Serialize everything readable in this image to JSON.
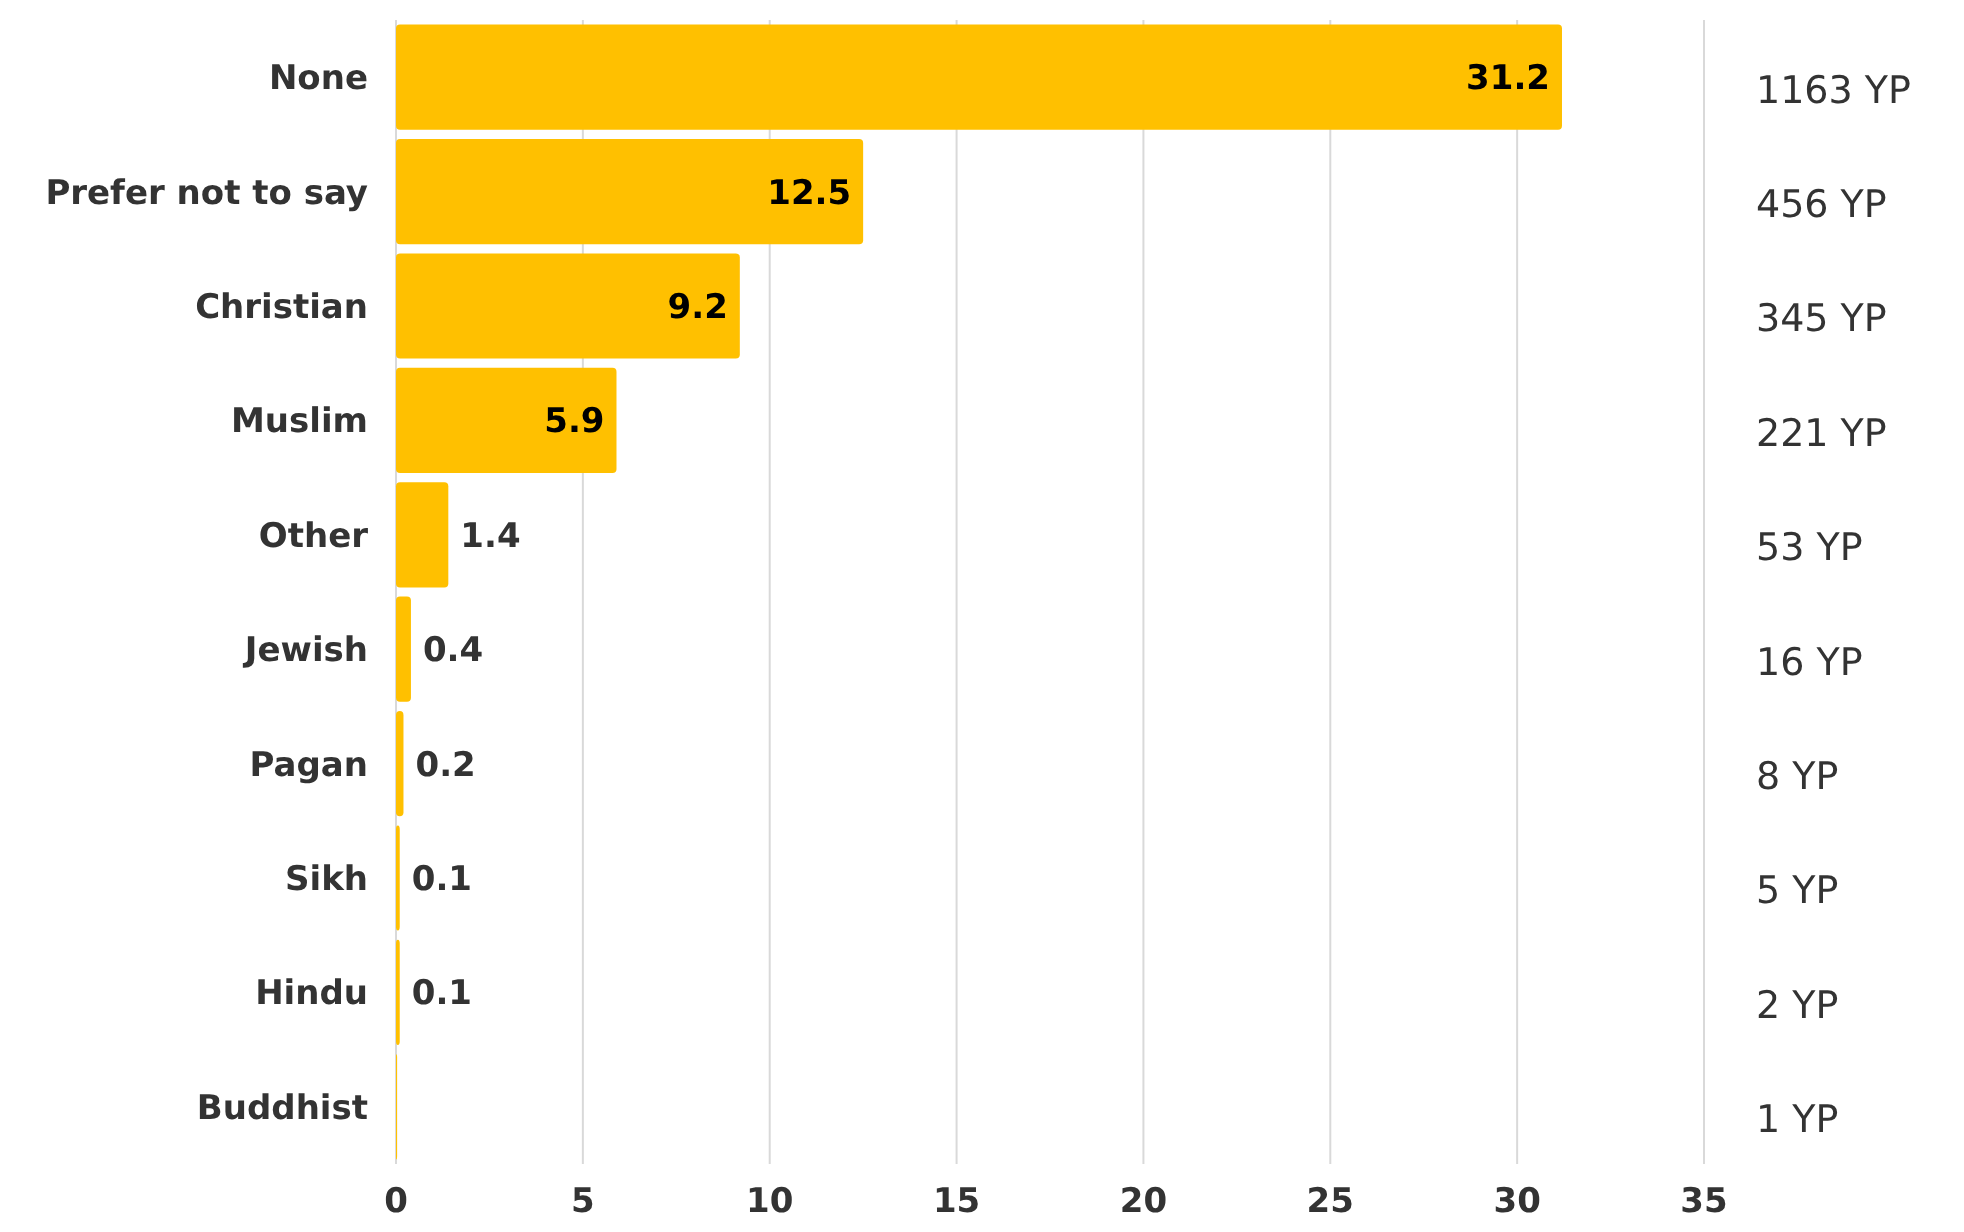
{
  "chart_data": {
    "type": "bar",
    "orientation": "horizontal",
    "categories": [
      "None",
      "Prefer not to say",
      "Christian",
      "Muslim",
      "Other",
      "Jewish",
      "Pagan",
      "Sikh",
      "Hindu",
      "Buddhist"
    ],
    "values": [
      31.2,
      12.5,
      9.2,
      5.9,
      1.4,
      0.4,
      0.2,
      0.1,
      0.1,
      0.03
    ],
    "value_labels": [
      "31.2",
      "12.5",
      "9.2",
      "5.9",
      "1.4",
      "0.4",
      "0.2",
      "0.1",
      "0.1",
      null
    ],
    "color": "#ffc000",
    "xlim": [
      0,
      35
    ],
    "xticks": [
      0,
      5,
      10,
      15,
      20,
      25,
      30,
      35
    ],
    "grid": "x",
    "annotations": [
      "1163 YP",
      "456 YP",
      "345 YP",
      "221 YP",
      "53 YP",
      "16 YP",
      "8 YP",
      "5 YP",
      "2 YP",
      "1 YP"
    ]
  }
}
